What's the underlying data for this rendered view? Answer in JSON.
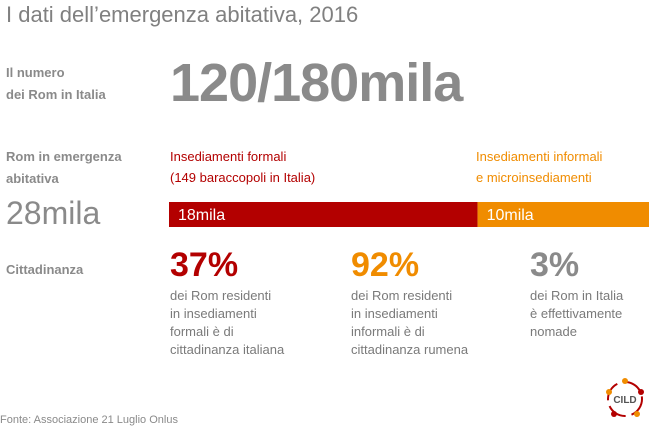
{
  "title": "I dati dell’emergenza abitativa, 2016",
  "labels": {
    "rom_count": [
      "Il numero",
      "dei Rom in Italia"
    ],
    "emergency": [
      "Rom in emergenza",
      "abitativa"
    ],
    "citizenship": "Cittadinanza"
  },
  "big_number": "120/180mila",
  "rom_emergency_total": "28mila",
  "colors": {
    "formal": "#b30000",
    "informal": "#f08c00",
    "neutral": "#8a8a8a"
  },
  "chart_data": {
    "type": "bar",
    "stacked": true,
    "orientation": "horizontal",
    "categories": [
      "Insediamenti formali",
      "Insediamenti informali e microinsediamenti"
    ],
    "segments": [
      {
        "label": [
          "Insediamenti formali",
          "(149 baraccopoli in Italia)"
        ],
        "value": 18000,
        "value_label": "18mila",
        "color": "#b30000"
      },
      {
        "label": [
          "Insediamenti informali",
          "e microinsediamenti"
        ],
        "value": 10000,
        "value_label": "10mila",
        "color": "#f08c00"
      }
    ],
    "total_label": "28mila"
  },
  "stats": [
    {
      "pct": "37%",
      "color": "#b30000",
      "desc": [
        "dei Rom residenti",
        "in insediamenti",
        "formali è di",
        "cittadinanza italiana"
      ]
    },
    {
      "pct": "92%",
      "color": "#f08c00",
      "desc": [
        "dei Rom residenti",
        "in insediamenti",
        "informali è di",
        "cittadinanza rumena"
      ]
    },
    {
      "pct": "3%",
      "color": "#8a8a8a",
      "desc": [
        "dei Rom in Italia",
        "è effettivamente",
        "nomade"
      ]
    }
  ],
  "source": "Fonte: Associazione 21 Luglio Onlus",
  "logo_text": "CILD"
}
